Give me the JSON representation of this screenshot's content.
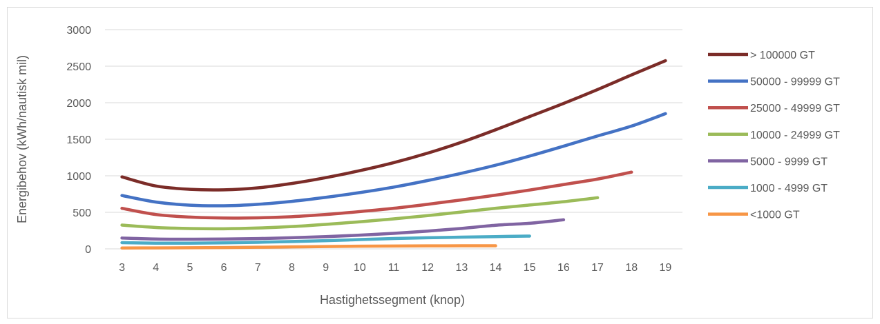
{
  "chart_data": {
    "type": "line",
    "title": "",
    "xlabel": "Hastighetssegment (knop)",
    "ylabel": "Energibehov (kWh/nautisk mil)",
    "ylim": [
      0,
      3000
    ],
    "yticks": [
      0,
      500,
      1000,
      1500,
      2000,
      2500,
      3000
    ],
    "categories": [
      3,
      4,
      5,
      6,
      7,
      8,
      9,
      10,
      11,
      12,
      13,
      14,
      15,
      16,
      17,
      18,
      19
    ],
    "grid": "horizontal",
    "legend": "right",
    "series": [
      {
        "name": "> 100000 GT",
        "color": "#7b2c28",
        "values": [
          985,
          860,
          815,
          808,
          835,
          895,
          975,
          1070,
          1180,
          1310,
          1460,
          1630,
          1810,
          1990,
          2180,
          2380,
          2575
        ]
      },
      {
        "name": "50000 - 99999 GT",
        "color": "#4472c4",
        "values": [
          730,
          640,
          598,
          590,
          610,
          650,
          705,
          770,
          845,
          935,
          1035,
          1145,
          1270,
          1405,
          1545,
          1680,
          1850
        ]
      },
      {
        "name": "25000 - 49999 GT",
        "color": "#c0504d",
        "values": [
          555,
          470,
          435,
          422,
          425,
          440,
          470,
          510,
          555,
          610,
          670,
          735,
          805,
          880,
          955,
          1050,
          null
        ]
      },
      {
        "name": "10000 - 24999 GT",
        "color": "#9bbb59",
        "values": [
          325,
          293,
          278,
          275,
          285,
          305,
          335,
          370,
          410,
          455,
          505,
          555,
          600,
          645,
          700,
          null,
          null
        ]
      },
      {
        "name": "5000 - 9999 GT",
        "color": "#8064a2",
        "values": [
          148,
          135,
          132,
          134,
          140,
          152,
          167,
          187,
          212,
          243,
          280,
          323,
          350,
          398,
          null,
          null,
          null
        ]
      },
      {
        "name": "1000 - 4999 GT",
        "color": "#4bacc6",
        "values": [
          85,
          78,
          78,
          82,
          90,
          100,
          112,
          127,
          142,
          152,
          160,
          168,
          175,
          null,
          null,
          null,
          null
        ]
      },
      {
        "name": "<1000 GT",
        "color": "#f79646",
        "values": [
          12,
          13,
          15,
          18,
          22,
          27,
          32,
          36,
          39,
          41,
          42,
          42,
          null,
          null,
          null,
          null,
          null
        ]
      }
    ]
  }
}
